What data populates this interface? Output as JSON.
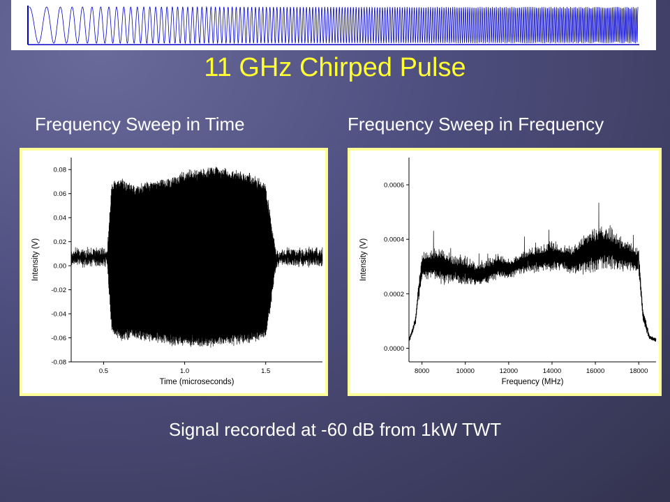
{
  "slide": {
    "title": "11 GHz Chirped Pulse",
    "subtitle_left": "Frequency Sweep in Time",
    "subtitle_right": "Frequency Sweep in Frequency",
    "caption": "Signal recorded at -60 dB from 1kW TWT"
  },
  "colors": {
    "title": "#ffff33",
    "text": "#ffffff",
    "chart_frame": "#ffff99",
    "banner_waveform": "#0000cc",
    "trace": "#000000"
  },
  "chart_data": [
    {
      "type": "line",
      "title": "",
      "xlabel": "Time (microseconds)",
      "ylabel": "Intensity (V)",
      "xlim": [
        0.3,
        1.85
      ],
      "ylim": [
        -0.08,
        0.09
      ],
      "x_ticks": [
        "0.5",
        "1.0",
        "1.5"
      ],
      "x_tick_values": [
        0.5,
        1.0,
        1.5
      ],
      "y_ticks": [
        "0.08",
        "0.06",
        "0.04",
        "0.02",
        "0.00",
        "-0.02",
        "-0.04",
        "-0.06",
        "-0.08"
      ],
      "y_tick_values": [
        0.08,
        0.06,
        0.04,
        0.02,
        0.0,
        -0.02,
        -0.04,
        -0.06,
        -0.08
      ],
      "grid": false,
      "series": [
        {
          "x": [
            0.3,
            0.52,
            0.55,
            0.6,
            0.7,
            0.8,
            0.9,
            1.0,
            1.1,
            1.2,
            1.3,
            1.4,
            1.5,
            1.53,
            1.56,
            1.6,
            1.85
          ],
          "envelope_upper": [
            0.008,
            0.008,
            0.068,
            0.072,
            0.066,
            0.07,
            0.072,
            0.078,
            0.08,
            0.082,
            0.079,
            0.076,
            0.068,
            0.04,
            0.015,
            0.008,
            0.008
          ],
          "envelope_lower": [
            0.006,
            0.006,
            -0.055,
            -0.062,
            -0.06,
            -0.063,
            -0.065,
            -0.066,
            -0.067,
            -0.066,
            -0.065,
            -0.064,
            -0.06,
            -0.035,
            -0.005,
            0.006,
            0.006
          ]
        }
      ]
    },
    {
      "type": "line",
      "title": "",
      "xlabel": "Frequency (MHz)",
      "ylabel": "Intensity (V)",
      "xlim": [
        7400,
        18800
      ],
      "ylim": [
        -5e-05,
        0.0007
      ],
      "x_ticks": [
        "8000",
        "10000",
        "12000",
        "14000",
        "16000",
        "18000"
      ],
      "x_tick_values": [
        8000,
        10000,
        12000,
        14000,
        16000,
        18000
      ],
      "y_ticks": [
        "0.0006",
        "0.0004",
        "0.0002",
        "0.0000"
      ],
      "y_tick_values": [
        0.0006,
        0.0004,
        0.0002,
        0.0
      ],
      "grid": false,
      "series": [
        {
          "x": [
            7400,
            7500,
            7700,
            7800,
            8000,
            8500,
            9000,
            9500,
            10000,
            10500,
            11000,
            11500,
            12000,
            12500,
            13000,
            13500,
            14000,
            14500,
            15000,
            15500,
            16000,
            16500,
            17000,
            17500,
            18000,
            18200,
            18500,
            18800
          ],
          "y": [
            3e-05,
            5e-05,
            0.0001,
            0.00018,
            0.0003,
            0.00031,
            0.0003,
            0.00029,
            0.00028,
            0.00027,
            0.00028,
            0.0003,
            0.00029,
            0.00031,
            0.00032,
            0.00033,
            0.00034,
            0.00033,
            0.00032,
            0.00035,
            0.00036,
            0.00037,
            0.00035,
            0.00034,
            0.00032,
            0.00012,
            4e-05,
            3e-05
          ],
          "amplitude": [
            1e-05,
            1e-05,
            2e-05,
            3e-05,
            5e-05,
            6e-05,
            7e-05,
            5e-05,
            6e-05,
            5e-05,
            5e-05,
            5e-05,
            4e-05,
            4e-05,
            5e-05,
            5e-05,
            6e-05,
            5e-05,
            6e-05,
            8e-05,
            9e-05,
            8e-05,
            7e-05,
            6e-05,
            5e-05,
            3e-05,
            1e-05,
            1e-05
          ]
        }
      ]
    }
  ]
}
